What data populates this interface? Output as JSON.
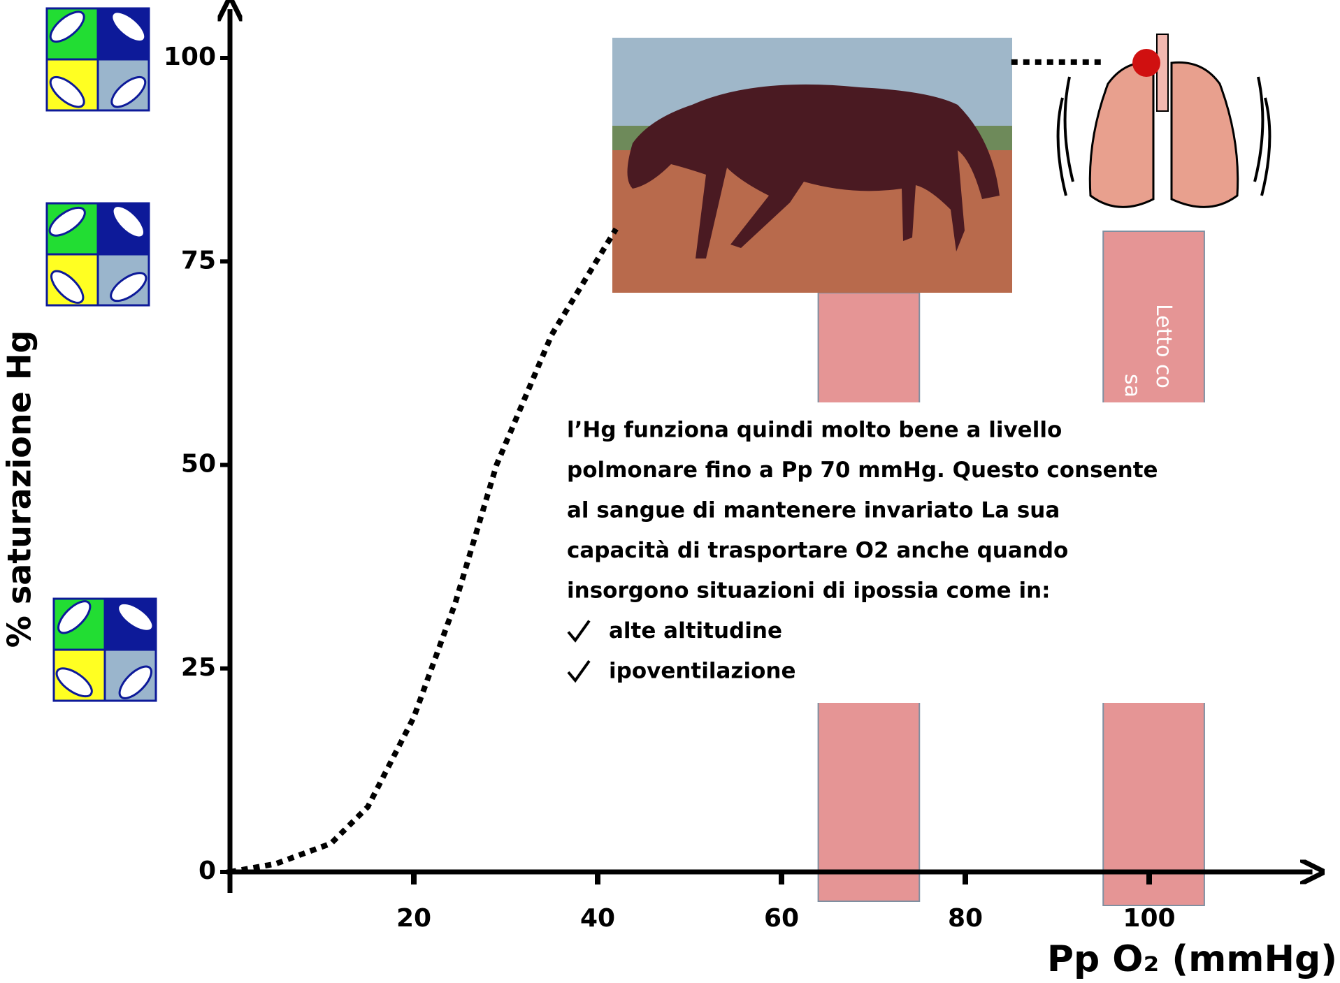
{
  "chart_data": {
    "type": "line",
    "y_label": "% saturazione Hg",
    "x_label": "Pp O₂ (mmHg)",
    "x": [
      0,
      5,
      11,
      15,
      20,
      24.5,
      29,
      35,
      42,
      60,
      85,
      95
    ],
    "series": [
      {
        "color": "#000000",
        "values": [
          0,
          1,
          3.5,
          8,
          19,
          33,
          50,
          66,
          79,
          null,
          99.5,
          99.5
        ]
      }
    ],
    "xlim": [
      0,
      117
    ],
    "ylim": [
      0,
      106
    ],
    "xticks": [
      20,
      40,
      60,
      80,
      100
    ],
    "yticks": [
      0,
      25,
      50,
      75,
      100
    ],
    "bands": [
      {
        "from": 64,
        "to": 75,
        "color": "#e59595"
      },
      {
        "from": 95,
        "to": 106,
        "color": "#e59595"
      }
    ],
    "band_text": [
      "Letto co",
      "sa"
    ],
    "annotation": {
      "lines": [
        "l’Hg funziona quindi molto bene a livello",
        "polmonare fino a Pp 70 mmHg. Questo consente",
        "al sangue di mantenere invariato La sua",
        "capacità di trasportare O2 anche quando",
        "insorgono situazioni di ipossia come in:"
      ],
      "bullets": [
        "alte altitudine",
        "ipoventilazione"
      ]
    }
  }
}
